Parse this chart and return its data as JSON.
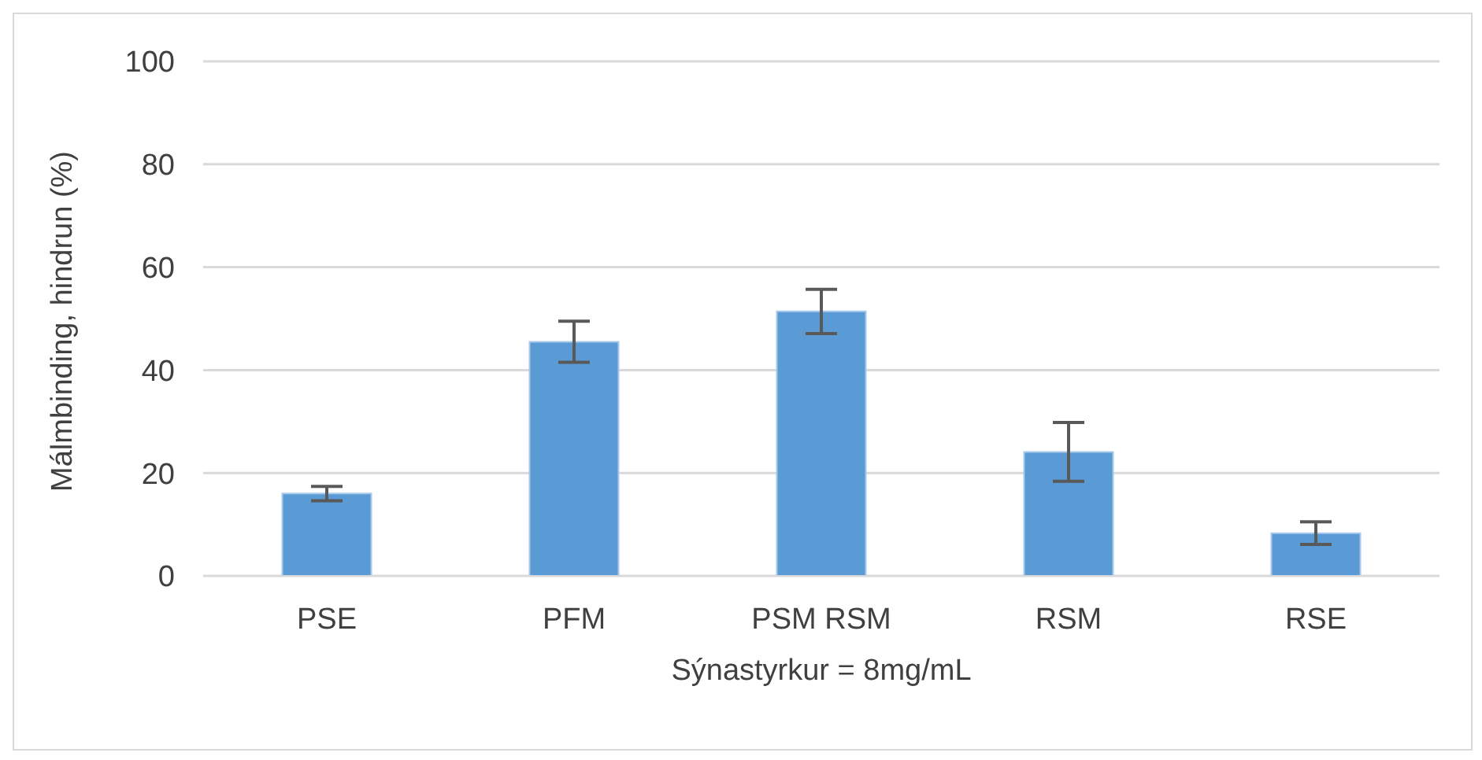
{
  "chart_data": {
    "type": "bar",
    "xlabel": "Sýnastyrkur = 8mg/mL",
    "ylabel": "Málmbinding, hindrun (%)",
    "categories": [
      "PSE",
      "PFM",
      "PSM RSM",
      "RSM",
      "RSE"
    ],
    "values": [
      16.0,
      45.5,
      51.4,
      24.1,
      8.3
    ],
    "errors": [
      1.4,
      4.0,
      4.3,
      5.7,
      2.2
    ],
    "color": "#5b9bd5",
    "ylim": [
      0,
      100
    ],
    "yticks": [
      0,
      20,
      40,
      60,
      80,
      100
    ],
    "grid": "y"
  }
}
